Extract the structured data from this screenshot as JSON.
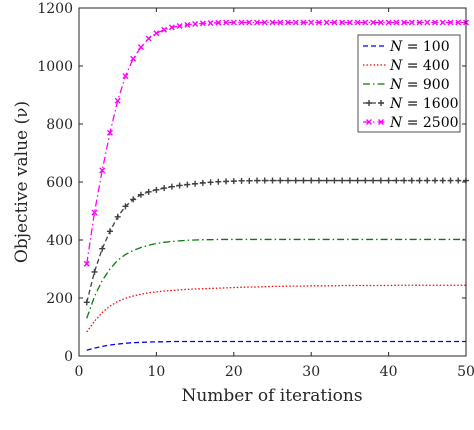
{
  "chart_data": {
    "type": "line",
    "title": "",
    "xlabel": "Number of iterations",
    "ylabel": "Objective value (ν)",
    "xlim": [
      0,
      50
    ],
    "ylim": [
      0,
      1200
    ],
    "xticks": [
      "0",
      "10",
      "20",
      "30",
      "40",
      "50"
    ],
    "yticks": [
      "0",
      "200",
      "400",
      "600",
      "800",
      "1000",
      "1200"
    ],
    "grid": false,
    "legend_position": "top-right",
    "x": [
      1,
      2,
      3,
      4,
      5,
      6,
      7,
      8,
      9,
      10,
      11,
      12,
      13,
      14,
      15,
      16,
      17,
      18,
      19,
      20,
      21,
      22,
      23,
      24,
      25,
      26,
      27,
      28,
      29,
      30,
      31,
      32,
      33,
      34,
      35,
      36,
      37,
      38,
      39,
      40,
      41,
      42,
      43,
      44,
      45,
      46,
      47,
      48,
      49,
      50
    ],
    "series": [
      {
        "name": "N = 100",
        "name_var": "N",
        "name_value": "100",
        "color": "#0000ff",
        "style": "dashed",
        "marker": "none",
        "values": [
          20,
          27,
          33,
          38,
          41,
          44,
          46,
          47,
          48,
          49,
          49,
          50,
          50,
          50,
          50,
          50,
          50,
          50,
          50,
          50,
          50,
          50,
          50,
          50,
          50,
          50,
          50,
          50,
          50,
          50,
          50,
          50,
          50,
          50,
          50,
          50,
          50,
          50,
          50,
          50,
          50,
          50,
          50,
          50,
          50,
          50,
          50,
          50,
          50,
          50
        ]
      },
      {
        "name": "N = 400",
        "name_var": "N",
        "name_value": "400",
        "color": "#ff0000",
        "style": "dotted",
        "marker": "none",
        "values": [
          83,
          120,
          150,
          172,
          188,
          199,
          207,
          213,
          218,
          221,
          224,
          226,
          228,
          230,
          231,
          232,
          233,
          234,
          235,
          236,
          237,
          238,
          238,
          239,
          240,
          240,
          241,
          241,
          241,
          242,
          242,
          242,
          242,
          243,
          243,
          243,
          243,
          243,
          243,
          243,
          244,
          244,
          244,
          244,
          244,
          244,
          244,
          244,
          244,
          244
        ]
      },
      {
        "name": "N = 900",
        "name_var": "N",
        "name_value": "900",
        "color": "#008000",
        "style": "dashdot",
        "marker": "none",
        "values": [
          130,
          205,
          260,
          300,
          330,
          350,
          364,
          374,
          382,
          388,
          392,
          395,
          397,
          399,
          400,
          401,
          401,
          402,
          402,
          402,
          402,
          402,
          402,
          402,
          402,
          402,
          402,
          402,
          402,
          402,
          402,
          402,
          402,
          402,
          402,
          402,
          402,
          402,
          402,
          402,
          402,
          402,
          402,
          402,
          402,
          402,
          402,
          402,
          402,
          402
        ]
      },
      {
        "name": "N = 1600",
        "name_var": "N",
        "name_value": "1600",
        "color": "#404040",
        "style": "dashed",
        "marker": "plus",
        "values": [
          185,
          290,
          370,
          430,
          480,
          516,
          540,
          556,
          566,
          573,
          579,
          584,
          588,
          591,
          594,
          597,
          599,
          601,
          602,
          603,
          604,
          604,
          605,
          605,
          605,
          605,
          605,
          605,
          605,
          605,
          605,
          605,
          605,
          605,
          605,
          605,
          605,
          605,
          605,
          605,
          605,
          605,
          605,
          605,
          605,
          605,
          605,
          605,
          605,
          605
        ]
      },
      {
        "name": "N = 2500",
        "name_var": "N",
        "name_value": "2500",
        "color": "#ff00ff",
        "style": "dashdot",
        "marker": "x",
        "values": [
          318,
          495,
          640,
          770,
          880,
          965,
          1025,
          1065,
          1095,
          1113,
          1125,
          1133,
          1138,
          1142,
          1145,
          1147,
          1148,
          1149,
          1150,
          1150,
          1150,
          1150,
          1150,
          1150,
          1150,
          1150,
          1150,
          1150,
          1150,
          1150,
          1150,
          1150,
          1150,
          1150,
          1150,
          1150,
          1150,
          1150,
          1150,
          1150,
          1150,
          1150,
          1150,
          1150,
          1150,
          1150,
          1150,
          1150,
          1150,
          1150
        ]
      }
    ]
  }
}
